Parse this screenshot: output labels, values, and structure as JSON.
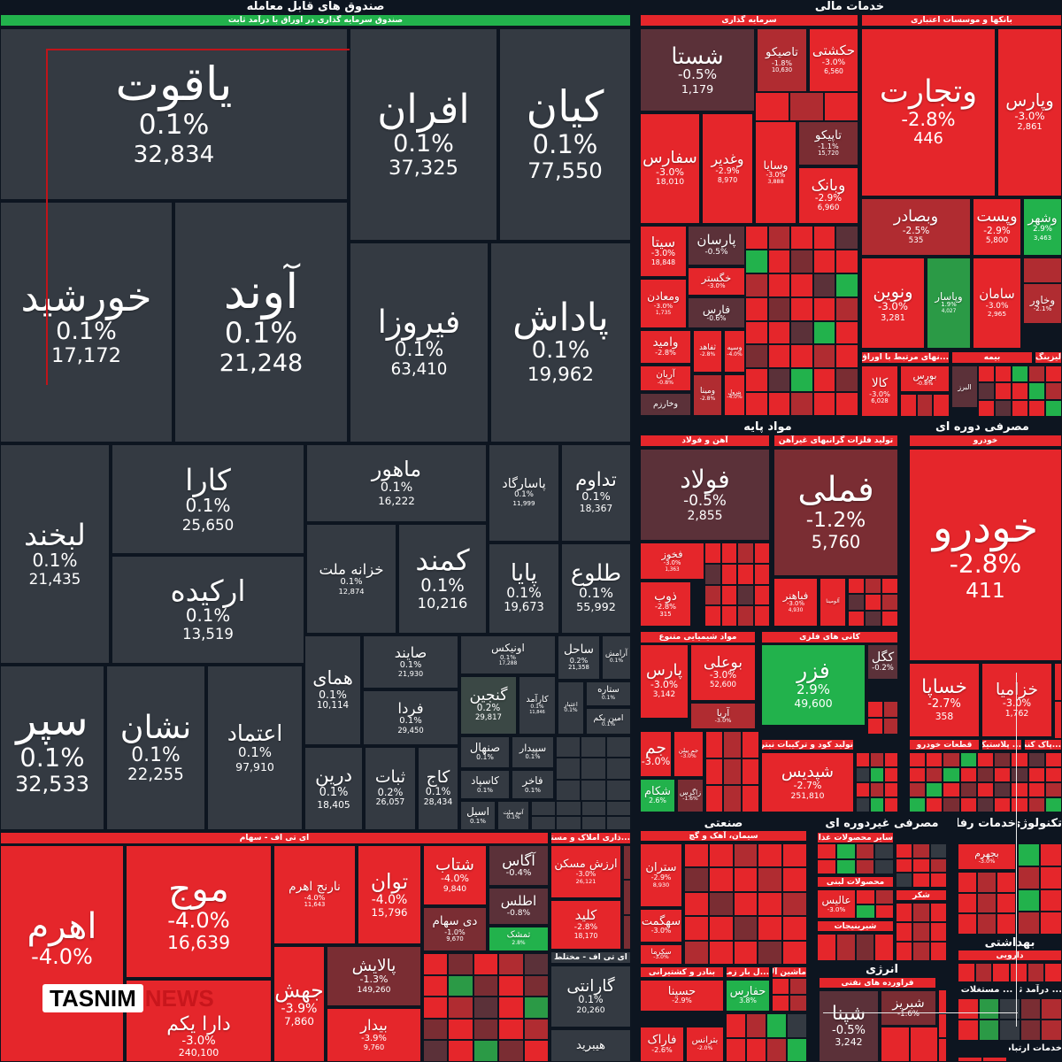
{
  "colors": {
    "red": "#e5262b",
    "darkred": "#b02c31",
    "brown": "#5b3139",
    "green": "#22b24c",
    "green2": "#2b9a46",
    "slate": "#343a42",
    "slate2": "#3b4845",
    "deep": "#7a2d33",
    "bg": "#0d1520"
  },
  "headers": [
    {
      "label": "صندوق های قابل معامله"
    },
    {
      "label": "صندوق سرمایه گذاری در اوراق با درآمد ثابت"
    },
    {
      "label": "خدمات مالی"
    },
    {
      "label": "سرمایه گذاری"
    },
    {
      "label": "بانکها و موسسات اعتباری"
    },
    {
      "label": "ای تی اف - سهام"
    },
    {
      "label": "...ذاری املاک و مستغلات"
    },
    {
      "label": "ای تی اف - مختلط"
    },
    {
      "label": "مواد پایه"
    },
    {
      "label": "مصرفی دوره ای"
    },
    {
      "label": "آهن و فولاد"
    },
    {
      "label": "تولید فلزات گرانبهای غیرآهن"
    },
    {
      "label": "خودرو"
    },
    {
      "label": "مواد شیمیایی متنوع"
    },
    {
      "label": "کانی های فلزی"
    },
    {
      "label": "تولید کود و ترکیبات نیتروژن"
    },
    {
      "label": "قطعات خودرو"
    },
    {
      "label": "... پلاستیک"
    },
    {
      "label": "...پاک کننده"
    },
    {
      "label": "...نهای مرتبط با اوراق بهادار"
    },
    {
      "label": "بیمه"
    },
    {
      "label": "لیزینگ"
    },
    {
      "label": "صنعتی"
    },
    {
      "label": "مصرفی غیردوره ای"
    },
    {
      "label": "خدمات رفاهی"
    },
    {
      "label": "تکنولوژی"
    },
    {
      "label": "سیمان، آهک و گچ"
    },
    {
      "label": "سایر محصولات غذایی"
    },
    {
      "label": "محصولات لبنی"
    },
    {
      "label": "شیرینیجات"
    },
    {
      "label": "شکر"
    },
    {
      "label": "بنادر و کشتیرانی"
    },
    {
      "label": "...ل بار زمینی"
    },
    {
      "label": "ماشین آلات"
    },
    {
      "label": "انرژی"
    },
    {
      "label": "فراورده های نفتی"
    },
    {
      "label": "بهداشتی"
    },
    {
      "label": "دارویی"
    },
    {
      "label": "... مستغلات"
    },
    {
      "label": "... درآمد ثابت"
    },
    {
      "label": "خدمات ارتباطی"
    }
  ],
  "tiles": [
    {
      "name": "یاقوت",
      "pct": "0.1%",
      "val": "32,834",
      "color": "slate"
    },
    {
      "name": "افران",
      "pct": "0.1%",
      "val": "37,325",
      "color": "slate"
    },
    {
      "name": "کیان",
      "pct": "0.1%",
      "val": "77,550",
      "color": "slate"
    },
    {
      "name": "خورشید",
      "pct": "0.1%",
      "val": "17,172",
      "color": "slate"
    },
    {
      "name": "آوند",
      "pct": "0.1%",
      "val": "21,248",
      "color": "slate"
    },
    {
      "name": "فیروزا",
      "pct": "0.1%",
      "val": "63,410",
      "color": "slate"
    },
    {
      "name": "پاداش",
      "pct": "0.1%",
      "val": "19,962",
      "color": "slate"
    },
    {
      "name": "لبخند",
      "pct": "0.1%",
      "val": "21,435",
      "color": "slate"
    },
    {
      "name": "کارا",
      "pct": "0.1%",
      "val": "25,650",
      "color": "slate"
    },
    {
      "name": "ارکیده",
      "pct": "0.1%",
      "val": "13,519",
      "color": "slate"
    },
    {
      "name": "ماهور",
      "pct": "0.1%",
      "val": "16,222",
      "color": "slate"
    },
    {
      "name": "پاسارگاد",
      "pct": "0.1%",
      "val": "11,999",
      "color": "slate"
    },
    {
      "name": "تداوم",
      "pct": "0.1%",
      "val": "18,367",
      "color": "slate"
    },
    {
      "name": "خزانه ملت",
      "pct": "0.1%",
      "val": "12,874",
      "color": "slate"
    },
    {
      "name": "کمند",
      "pct": "0.1%",
      "val": "10,216",
      "color": "slate"
    },
    {
      "name": "پایا",
      "pct": "0.1%",
      "val": "19,673",
      "color": "slate"
    },
    {
      "name": "طلوع",
      "pct": "0.1%",
      "val": "55,992",
      "color": "slate"
    },
    {
      "name": "سپر",
      "pct": "0.1%",
      "val": "32,533",
      "color": "slate"
    },
    {
      "name": "نشان",
      "pct": "0.1%",
      "val": "22,255",
      "color": "slate"
    },
    {
      "name": "اعتماد",
      "pct": "0.1%",
      "val": "97,910",
      "color": "slate"
    },
    {
      "name": "همای",
      "pct": "0.1%",
      "val": "10,114",
      "color": "slate"
    },
    {
      "name": "صایند",
      "pct": "0.1%",
      "val": "21,930",
      "color": "slate"
    },
    {
      "name": "فردا",
      "pct": "0.1%",
      "val": "29,450",
      "color": "slate"
    },
    {
      "name": "درین",
      "pct": "0.1%",
      "val": "18,405",
      "color": "slate"
    },
    {
      "name": "ثبات",
      "pct": "0.2%",
      "val": "26,057",
      "color": "slate"
    },
    {
      "name": "کاج",
      "pct": "0.1%",
      "val": "28,434",
      "color": "slate"
    },
    {
      "name": "اونیکس",
      "pct": "0.1%",
      "val": "17,288",
      "color": "slate"
    },
    {
      "name": "ساحل",
      "pct": "0.2%",
      "val": "21,358",
      "color": "slate"
    },
    {
      "name": "آرامش",
      "pct": "0.1%",
      "val": "",
      "color": "slate"
    },
    {
      "name": "گنجین",
      "pct": "0.2%",
      "val": "29,817",
      "color": "slate2"
    },
    {
      "name": "کارآمد",
      "pct": "0.1%",
      "val": "11,846",
      "color": "slate"
    },
    {
      "name": "اعتبار",
      "pct": "0.1%",
      "val": "",
      "color": "slate"
    },
    {
      "name": "ستاره",
      "pct": "0.1%",
      "val": "",
      "color": "slate"
    },
    {
      "name": "امین یکم",
      "pct": "0.1%",
      "val": "",
      "color": "slate"
    },
    {
      "name": "صنهال",
      "pct": "0.1%",
      "val": "",
      "color": "slate"
    },
    {
      "name": "سپیدار",
      "pct": "0.1%",
      "val": "",
      "color": "slate"
    },
    {
      "name": "کاسپاد",
      "pct": "0.1%",
      "val": "",
      "color": "slate"
    },
    {
      "name": "فاخر",
      "pct": "0.1%",
      "val": "",
      "color": "slate"
    },
    {
      "name": "آتیه ملت",
      "pct": "0.1%",
      "val": "",
      "color": "slate"
    },
    {
      "name": "اسیل",
      "pct": "0.1%",
      "val": "",
      "color": "slate"
    },
    {
      "name": "اهرم",
      "pct": "-4.0%",
      "val": "",
      "color": "red"
    },
    {
      "name": "موج",
      "pct": "-4.0%",
      "val": "16,639",
      "color": "red"
    },
    {
      "name": "دارا یکم",
      "pct": "-3.0%",
      "val": "240,100",
      "color": "red"
    },
    {
      "name": "نارنج اهرم",
      "pct": "-4.0%",
      "val": "11,643",
      "color": "red"
    },
    {
      "name": "توان",
      "pct": "-4.0%",
      "val": "15,796",
      "color": "red"
    },
    {
      "name": "شتاب",
      "pct": "-4.0%",
      "val": "9,840",
      "color": "red"
    },
    {
      "name": "آگاس",
      "pct": "-0.4%",
      "val": "",
      "color": "brown"
    },
    {
      "name": "اطلس",
      "pct": "-0.8%",
      "val": "",
      "color": "brown"
    },
    {
      "name": "دی سهام",
      "pct": "-1.0%",
      "val": "9,670",
      "color": "deep"
    },
    {
      "name": "تمشک",
      "pct": "2.8%",
      "val": "",
      "color": "green"
    },
    {
      "name": "جهش",
      "pct": "-3.9%",
      "val": "7,860",
      "color": "red"
    },
    {
      "name": "پالایش",
      "pct": "-1.3%",
      "val": "149,260",
      "color": "deep"
    },
    {
      "name": "بیدار",
      "pct": "-3.9%",
      "val": "9,760",
      "color": "red"
    },
    {
      "name": "ارزش مسکن",
      "pct": "-3.0%",
      "val": "26,121",
      "color": "red"
    },
    {
      "name": "کلید",
      "pct": "-2.8%",
      "val": "18,170",
      "color": "red"
    },
    {
      "name": "گارانتی",
      "pct": "0.1%",
      "val": "20,260",
      "color": "slate"
    },
    {
      "name": "هیبرید",
      "pct": "",
      "val": "",
      "color": "slate"
    },
    {
      "name": "شستا",
      "pct": "-0.5%",
      "val": "1,179",
      "color": "brown"
    },
    {
      "name": "تاصیکو",
      "pct": "-1.8%",
      "val": "10,630",
      "color": "darkred"
    },
    {
      "name": "حکشتی",
      "pct": "-3.0%",
      "val": "6,560",
      "color": "red"
    },
    {
      "name": "سفارس",
      "pct": "-3.0%",
      "val": "18,010",
      "color": "red"
    },
    {
      "name": "وغدیر",
      "pct": "-2.9%",
      "val": "8,970",
      "color": "red"
    },
    {
      "name": "وسایا",
      "pct": "-3.0%",
      "val": "3,888",
      "color": "red"
    },
    {
      "name": "تاپیکو",
      "pct": "-1.1%",
      "val": "15,720",
      "color": "deep"
    },
    {
      "name": "وبانک",
      "pct": "-2.9%",
      "val": "6,960",
      "color": "red"
    },
    {
      "name": "سیتا",
      "pct": "-3.0%",
      "val": "18,848",
      "color": "red"
    },
    {
      "name": "ومعادن",
      "pct": "-3.0%",
      "val": "1,735",
      "color": "red"
    },
    {
      "name": "پارسان",
      "pct": "-0.5%",
      "val": "",
      "color": "brown"
    },
    {
      "name": "خگستر",
      "pct": "-3.0%",
      "val": "",
      "color": "red"
    },
    {
      "name": "فارس",
      "pct": "-0.6%",
      "val": "",
      "color": "brown"
    },
    {
      "name": "وامید",
      "pct": "-2.8%",
      "val": "",
      "color": "red"
    },
    {
      "name": "آریان",
      "pct": "-0.8%",
      "val": "",
      "color": "red"
    },
    {
      "name": "وخارزم",
      "pct": "",
      "val": "",
      "color": "brown"
    },
    {
      "name": "ثفاهد",
      "pct": "-2.8%",
      "val": "",
      "color": "red"
    },
    {
      "name": "وسپه",
      "pct": "-4.0%",
      "val": "",
      "color": "red"
    },
    {
      "name": "ومینا",
      "pct": "-2.8%",
      "val": "",
      "color": "darkred"
    },
    {
      "name": "پترول",
      "pct": "-4.0%",
      "val": "",
      "color": "red"
    },
    {
      "name": "وتجارت",
      "pct": "-2.8%",
      "val": "446",
      "color": "red"
    },
    {
      "name": "وپارس",
      "pct": "-3.0%",
      "val": "2,861",
      "color": "red"
    },
    {
      "name": "وبصادر",
      "pct": "-2.5%",
      "val": "535",
      "color": "darkred"
    },
    {
      "name": "وپست",
      "pct": "-2.9%",
      "val": "5,800",
      "color": "red"
    },
    {
      "name": "وشهر",
      "pct": "2.9%",
      "val": "3,463",
      "color": "green"
    },
    {
      "name": "ونوین",
      "pct": "-3.0%",
      "val": "3,281",
      "color": "red"
    },
    {
      "name": "وپاسار",
      "pct": "1.9%",
      "val": "4,027",
      "color": "green2"
    },
    {
      "name": "سامان",
      "pct": "-3.0%",
      "val": "2,965",
      "color": "red"
    },
    {
      "name": "وخاور",
      "pct": "-2.1%",
      "val": "",
      "color": "darkred"
    },
    {
      "name": "کالا",
      "pct": "-3.0%",
      "val": "6,028",
      "color": "red"
    },
    {
      "name": "بورس",
      "pct": "-0.8%",
      "val": "",
      "color": "red"
    },
    {
      "name": "البرز",
      "pct": "",
      "val": "",
      "color": "brown"
    },
    {
      "name": "فولاد",
      "pct": "-0.5%",
      "val": "2,855",
      "color": "brown"
    },
    {
      "name": "فخوز",
      "pct": "-3.0%",
      "val": "1,363",
      "color": "red"
    },
    {
      "name": "ذوب",
      "pct": "-2.8%",
      "val": "315",
      "color": "red"
    },
    {
      "name": "فملی",
      "pct": "-1.2%",
      "val": "5,760",
      "color": "deep"
    },
    {
      "name": "فباهنر",
      "pct": "-3.0%",
      "val": "4,930",
      "color": "red"
    },
    {
      "name": "آلومینا",
      "pct": "",
      "val": "",
      "color": "red"
    },
    {
      "name": "خودرو",
      "pct": "-2.8%",
      "val": "411",
      "color": "red"
    },
    {
      "name": "خساپا",
      "pct": "-2.7%",
      "val": "358",
      "color": "red"
    },
    {
      "name": "خزامیا",
      "pct": "-3.0%",
      "val": "1,762",
      "color": "red"
    },
    {
      "name": "پارس",
      "pct": "-3.0%",
      "val": "3,142",
      "color": "red"
    },
    {
      "name": "بوعلی",
      "pct": "-3.0%",
      "val": "52,600",
      "color": "red"
    },
    {
      "name": "آریا",
      "pct": "-3.0%",
      "val": "",
      "color": "darkred"
    },
    {
      "name": "فزر",
      "pct": "2.9%",
      "val": "49,600",
      "color": "green"
    },
    {
      "name": "کگل",
      "pct": "-0.2%",
      "val": "",
      "color": "brown"
    },
    {
      "name": "جم",
      "pct": "-3.0%",
      "val": "",
      "color": "red"
    },
    {
      "name": "جم پیلن",
      "pct": "-3.0%",
      "val": "",
      "color": "red"
    },
    {
      "name": "شکام",
      "pct": "2.6%",
      "val": "",
      "color": "green"
    },
    {
      "name": "زاگرس",
      "pct": "-1.6%",
      "val": "",
      "color": "deep"
    },
    {
      "name": "شپدیس",
      "pct": "-2.7%",
      "val": "251,810",
      "color": "red"
    },
    {
      "name": "ستران",
      "pct": "-2.9%",
      "val": "8,930",
      "color": "red"
    },
    {
      "name": "سهگمت",
      "pct": "-3.0%",
      "val": "",
      "color": "red"
    },
    {
      "name": "سکرما",
      "pct": "-3.0%",
      "val": "",
      "color": "red"
    },
    {
      "name": "حسینا",
      "pct": "-2.9%",
      "val": "",
      "color": "red"
    },
    {
      "name": "حفارس",
      "pct": "3.8%",
      "val": "",
      "color": "green"
    },
    {
      "name": "فاراک",
      "pct": "-2.6%",
      "val": "",
      "color": "red"
    },
    {
      "name": "بترانس",
      "pct": "-2.0%",
      "val": "",
      "color": "red"
    },
    {
      "name": "شپنا",
      "pct": "-0.5%",
      "val": "3,242",
      "color": "brown"
    },
    {
      "name": "شبریز",
      "pct": "-1.6%",
      "val": "",
      "color": "deep"
    },
    {
      "name": "عالیس",
      "pct": "-3.0%",
      "val": "",
      "color": "red"
    },
    {
      "name": "بجهرم",
      "pct": "-3.0%",
      "val": "",
      "color": "red"
    }
  ],
  "watermark": {
    "brand": "TASNIM",
    "suffix": "NEWS"
  }
}
